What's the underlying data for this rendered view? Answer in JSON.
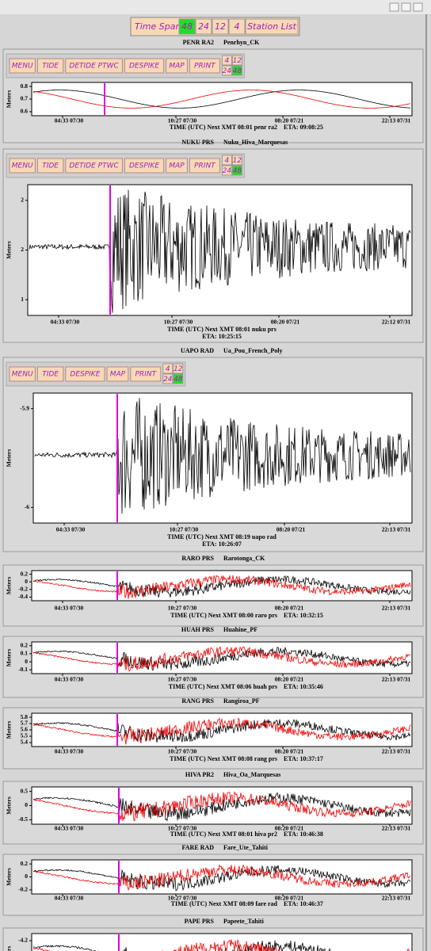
{
  "toolbar": {
    "title": "Time Span",
    "spans": [
      "48",
      "24",
      "12",
      "4"
    ],
    "active": 0,
    "station_list": "Station List"
  },
  "panels": [
    {
      "code": "PENR RA2",
      "name": "Penrhyn_CK",
      "buttons": [
        "MENU",
        "TIDE",
        "DETIDE PTWC",
        "DESPIKE",
        "MAP",
        "PRINT"
      ],
      "spans": [
        "4",
        "12",
        "24",
        "48"
      ],
      "y_label": "Meters",
      "yticks": [
        "0.8",
        "0.7",
        "0.6"
      ],
      "xticks": [
        "04:33 07/30",
        "10:27 07/30",
        "08:20 07/21",
        "22:13 07/31"
      ],
      "status": "TIME (UTC)  Next XMT 08:01  penr ra2",
      "eta": "ETA: 09:08:25"
    },
    {
      "code": "NUKU PRS",
      "name": "Nuku_Hiva_Marquesas",
      "buttons": [
        "MENU",
        "TIDE",
        "DETIDE PTWC",
        "DESPIKE",
        "MAP",
        "PRINT"
      ],
      "spans": [
        "4",
        "12",
        "24",
        "48"
      ],
      "y_label": "Meters",
      "yticks": [
        "2",
        "2",
        "1"
      ],
      "xticks": [
        "04:33 07/30",
        "10:27 07/30",
        "08:20 07/21",
        "22:12 07/31"
      ],
      "status": "TIME (UTC)  Next XMT 08:01  nuku prs",
      "eta": "ETA: 10:25:15"
    },
    {
      "code": "UAPO RAD",
      "name": "Ua_Pou_French_Poly",
      "buttons": [
        "MENU",
        "TIDE",
        "DESPIKE",
        "MAP",
        "PRINT"
      ],
      "spans": [
        "4",
        "12",
        "24",
        "48"
      ],
      "y_label": "Meters",
      "yticks": [
        "-5.9",
        "-6"
      ],
      "xticks": [
        "04:33 07/30",
        "10:27 07/30",
        "08:20 07/21",
        "22:13 07/31"
      ],
      "status": "TIME (UTC)  Next XMT 08:19  uapo rad",
      "eta": "ETA: 10:26:07"
    },
    {
      "code": "RARO PRS",
      "name": "Rarotonga_CK",
      "y_label": "Meters",
      "yticks": [
        "0.2",
        "0",
        "-0.2",
        "-0.4"
      ],
      "xticks": [
        "04:33 07/30",
        "10:27 07/30",
        "08:20 07/21",
        "22:13 07/31"
      ],
      "status": "TIME (UTC)  Next XMT 08:00  raro prs",
      "eta": "ETA: 10:32:15"
    },
    {
      "code": "HUAH PRS",
      "name": "Huahine_PF",
      "y_label": "Meters",
      "yticks": [
        "0.2",
        "0.1",
        "0",
        "-0.1"
      ],
      "xticks": [
        "04:33 07/30",
        "10:27 07/30",
        "08:20 07/21",
        "22:13 07/31"
      ],
      "status": "TIME (UTC)  Next XMT 08:06  huah prs",
      "eta": "ETA: 10:35:46"
    },
    {
      "code": "RANG PRS",
      "name": "Rangiroa_PF",
      "y_label": "Meters",
      "yticks": [
        "5.8",
        "5.7",
        "5.6",
        "5.5",
        "5.4"
      ],
      "xticks": [
        "04:33 07/30",
        "10:27 07/30",
        "08:20 07/21",
        "22:13 07/31"
      ],
      "status": "TIME (UTC)  Next XMT 08:08  rang prs",
      "eta": "ETA: 10:37:17"
    },
    {
      "code": "HIVA PR2",
      "name": "Hiva_Oa_Marquesas",
      "y_label": "Meters",
      "yticks": [
        "0.5",
        "0",
        "-0.5"
      ],
      "xticks": [
        "04:33 07/30",
        "10:27 07/30",
        "08:20 07/21",
        "22:13 07/31"
      ],
      "status": "TIME (UTC)  Next XMT 08:01  hiva pr2",
      "eta": "ETA: 10:46:38"
    },
    {
      "code": "FARE RAD",
      "name": "Fare_Ute_Tahiti",
      "y_label": "Meters",
      "yticks": [
        "0.2",
        "0",
        "-0.2"
      ],
      "xticks": [
        "04:33 07/30",
        "10:27 07/30",
        "08:20 07/21",
        "22:13 07/31"
      ],
      "status": "TIME (UTC)  Next XMT 08:09  fare rad",
      "eta": "ETA: 10:46:37"
    },
    {
      "code": "PAPE PRS",
      "name": "Papeete_Tahiti",
      "y_label": "Meters",
      "yticks": [
        "-4.2"
      ]
    }
  ]
}
